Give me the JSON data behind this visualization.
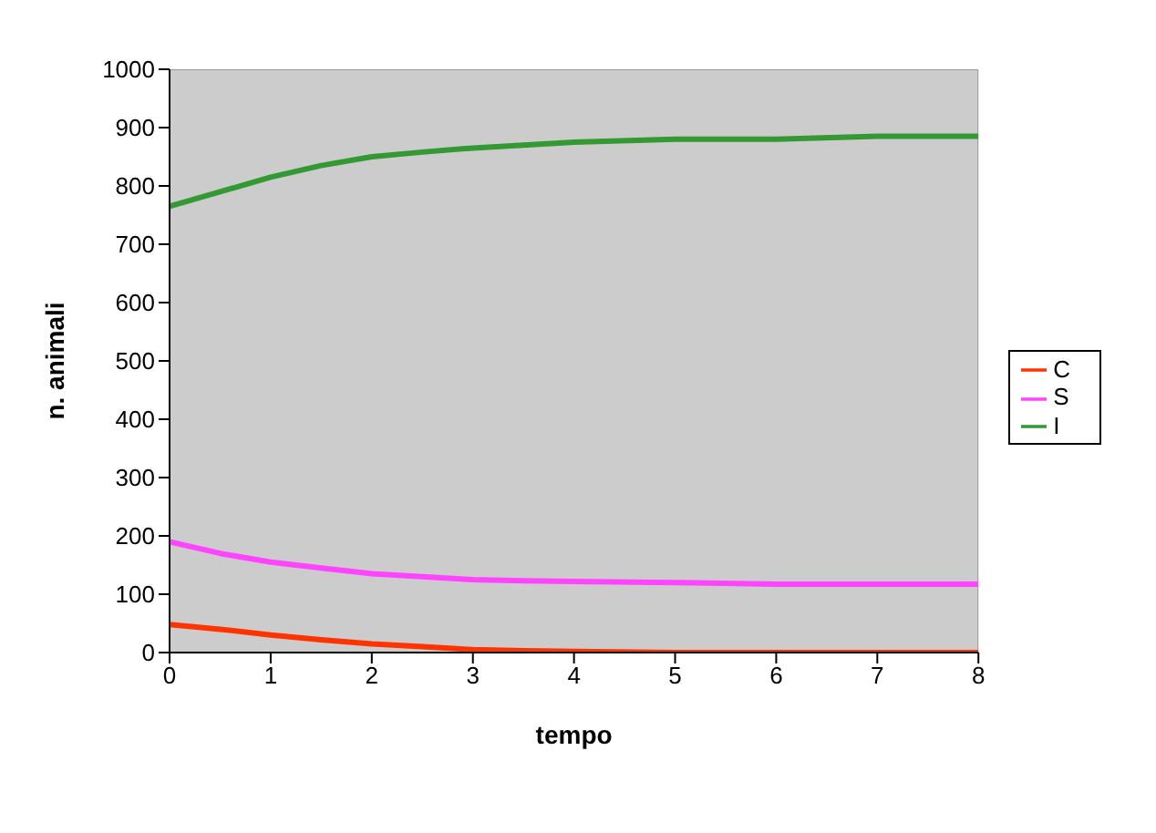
{
  "chart_data": {
    "type": "line",
    "xlabel": "tempo",
    "ylabel": "n. animali",
    "x": [
      0,
      0.5,
      1,
      1.5,
      2,
      2.5,
      3,
      3.5,
      4,
      5,
      6,
      7,
      8
    ],
    "series": [
      {
        "name": "C",
        "color": "#ff3300",
        "values": [
          48,
          40,
          30,
          22,
          15,
          10,
          5,
          3,
          2,
          0,
          0,
          0,
          0
        ]
      },
      {
        "name": "S",
        "color": "#ff44ff",
        "values": [
          190,
          170,
          155,
          145,
          135,
          130,
          125,
          123,
          122,
          120,
          117,
          117,
          117
        ]
      },
      {
        "name": "I",
        "color": "#339933",
        "values": [
          765,
          790,
          815,
          835,
          850,
          858,
          865,
          870,
          875,
          880,
          880,
          885,
          885
        ]
      }
    ],
    "xlim": [
      0,
      8
    ],
    "xticks": [
      0,
      1,
      2,
      3,
      4,
      5,
      6,
      7,
      8
    ],
    "ylim": [
      0,
      1000
    ],
    "yticks": [
      0,
      100,
      200,
      300,
      400,
      500,
      600,
      700,
      800,
      900,
      1000
    ],
    "grid": false,
    "legend": "right",
    "marker": "none",
    "line_style": "solid"
  }
}
